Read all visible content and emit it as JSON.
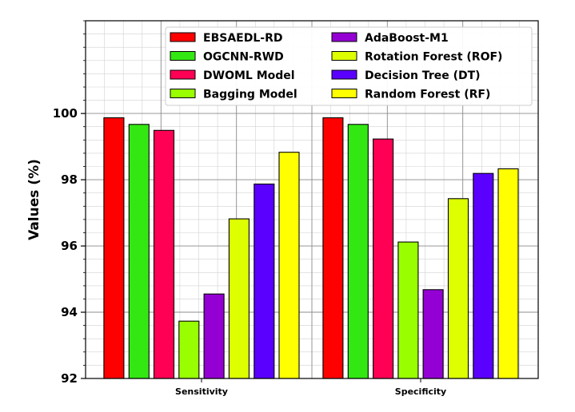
{
  "chart_data": {
    "type": "bar",
    "title": "",
    "xlabel": "",
    "ylabel": "Values (%)",
    "ylim": [
      92,
      102.8
    ],
    "yticks": [
      92,
      94,
      96,
      98,
      100
    ],
    "grid": true,
    "legend_position": "top",
    "categories": [
      "Sensitivity",
      "Specificity"
    ],
    "series": [
      {
        "name": "EBSAEDL-RD",
        "color": "#ff0000",
        "values": [
          99.87,
          99.87
        ]
      },
      {
        "name": "OGCNN-RWD",
        "color": "#33e812",
        "values": [
          99.67,
          99.67
        ]
      },
      {
        "name": "DWOML Model",
        "color": "#ff0055",
        "values": [
          99.49,
          99.23
        ]
      },
      {
        "name": "Bagging Model",
        "color": "#99ff00",
        "values": [
          93.73,
          96.12
        ]
      },
      {
        "name": "AdaBoost-M1",
        "color": "#9400d3",
        "values": [
          94.55,
          94.68
        ]
      },
      {
        "name": "Rotation Forest (ROF)",
        "color": "#ddff00",
        "values": [
          96.82,
          97.43
        ]
      },
      {
        "name": "Decision Tree (DT)",
        "color": "#5a00ff",
        "values": [
          97.87,
          98.19
        ]
      },
      {
        "name": "Random Forest (RF)",
        "color": "#ffff00",
        "values": [
          98.83,
          98.33
        ]
      }
    ]
  }
}
